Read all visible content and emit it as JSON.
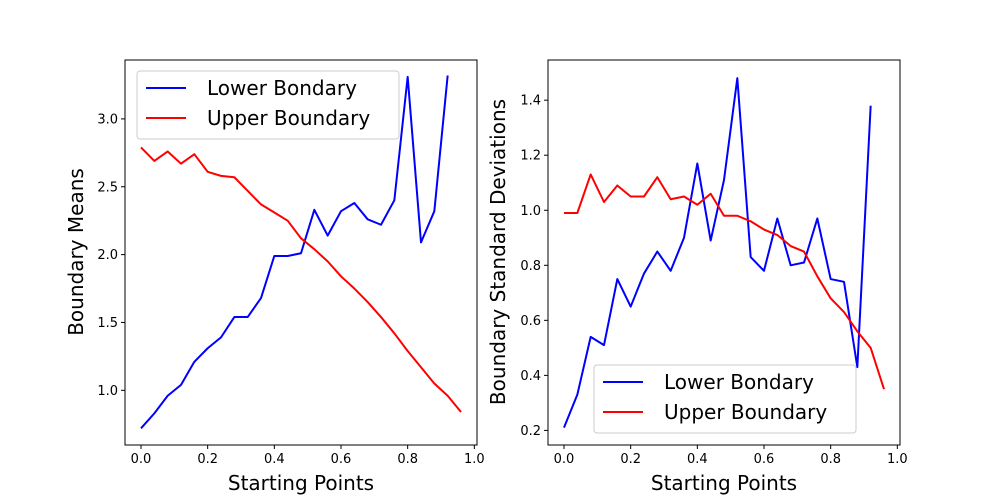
{
  "chart_data": [
    {
      "type": "line",
      "xlabel": "Starting Points",
      "ylabel": "Boundary Means",
      "xlim": [
        -0.048,
        1.008
      ],
      "ylim": [
        0.597,
        3.434
      ],
      "xticks": [
        0.0,
        0.2,
        0.4,
        0.6,
        0.8,
        1.0
      ],
      "xtick_labels": [
        "0.0",
        "0.2",
        "0.4",
        "0.6",
        "0.8",
        "1.0"
      ],
      "yticks": [
        1.0,
        1.5,
        2.0,
        2.5,
        3.0
      ],
      "ytick_labels": [
        "1.0",
        "1.5",
        "2.0",
        "2.5",
        "3.0"
      ],
      "legend_position": "top-left",
      "grid": false,
      "series": [
        {
          "name": "Lower Bondary",
          "color": "#0000ff",
          "x": [
            0.0,
            0.04,
            0.08,
            0.12,
            0.16,
            0.2,
            0.24,
            0.28,
            0.32,
            0.36,
            0.4,
            0.44,
            0.48,
            0.52,
            0.56,
            0.6,
            0.64,
            0.68,
            0.72,
            0.76,
            0.8,
            0.84,
            0.88,
            0.92
          ],
          "y": [
            0.72,
            0.83,
            0.96,
            1.04,
            1.21,
            1.31,
            1.39,
            1.54,
            1.54,
            1.68,
            1.99,
            1.99,
            2.01,
            2.33,
            2.14,
            2.32,
            2.38,
            2.26,
            2.22,
            2.4,
            3.31,
            2.09,
            2.32,
            3.32
          ]
        },
        {
          "name": "Upper Boundary",
          "color": "#ff0000",
          "x": [
            0.0,
            0.04,
            0.08,
            0.12,
            0.16,
            0.2,
            0.24,
            0.28,
            0.32,
            0.36,
            0.4,
            0.44,
            0.48,
            0.52,
            0.56,
            0.6,
            0.64,
            0.68,
            0.72,
            0.76,
            0.8,
            0.84,
            0.88,
            0.92,
            0.96
          ],
          "y": [
            2.79,
            2.69,
            2.76,
            2.67,
            2.74,
            2.61,
            2.58,
            2.57,
            2.47,
            2.37,
            2.31,
            2.25,
            2.12,
            2.04,
            1.95,
            1.84,
            1.75,
            1.65,
            1.54,
            1.42,
            1.29,
            1.17,
            1.05,
            0.96,
            0.84
          ]
        }
      ]
    },
    {
      "type": "line",
      "xlabel": "Starting Points",
      "ylabel": "Boundary Standard Deviations",
      "xlim": [
        -0.048,
        1.008
      ],
      "ylim": [
        0.147,
        1.546
      ],
      "xticks": [
        0.0,
        0.2,
        0.4,
        0.6,
        0.8,
        1.0
      ],
      "xtick_labels": [
        "0.0",
        "0.2",
        "0.4",
        "0.6",
        "0.8",
        "1.0"
      ],
      "yticks": [
        0.2,
        0.4,
        0.6,
        0.8,
        1.0,
        1.2,
        1.4
      ],
      "ytick_labels": [
        "0.2",
        "0.4",
        "0.6",
        "0.8",
        "1.0",
        "1.2",
        "1.4"
      ],
      "legend_position": "bottom-right",
      "grid": false,
      "series": [
        {
          "name": "Lower Bondary",
          "color": "#0000ff",
          "x": [
            0.0,
            0.04,
            0.08,
            0.12,
            0.16,
            0.2,
            0.24,
            0.28,
            0.32,
            0.36,
            0.4,
            0.44,
            0.48,
            0.52,
            0.56,
            0.6,
            0.64,
            0.68,
            0.72,
            0.76,
            0.8,
            0.84,
            0.88,
            0.92
          ],
          "y": [
            0.21,
            0.33,
            0.54,
            0.51,
            0.75,
            0.65,
            0.77,
            0.85,
            0.78,
            0.9,
            1.17,
            0.89,
            1.11,
            1.48,
            0.83,
            0.78,
            0.97,
            0.8,
            0.81,
            0.97,
            0.75,
            0.74,
            0.43,
            1.38
          ]
        },
        {
          "name": "Upper Boundary",
          "color": "#ff0000",
          "x": [
            0.0,
            0.04,
            0.08,
            0.12,
            0.16,
            0.2,
            0.24,
            0.28,
            0.32,
            0.36,
            0.4,
            0.44,
            0.48,
            0.52,
            0.56,
            0.6,
            0.64,
            0.68,
            0.72,
            0.76,
            0.8,
            0.84,
            0.88,
            0.92,
            0.96
          ],
          "y": [
            0.99,
            0.99,
            1.13,
            1.03,
            1.09,
            1.05,
            1.05,
            1.12,
            1.04,
            1.05,
            1.02,
            1.06,
            0.98,
            0.98,
            0.96,
            0.93,
            0.91,
            0.87,
            0.85,
            0.76,
            0.68,
            0.63,
            0.56,
            0.5,
            0.35
          ]
        }
      ]
    }
  ]
}
